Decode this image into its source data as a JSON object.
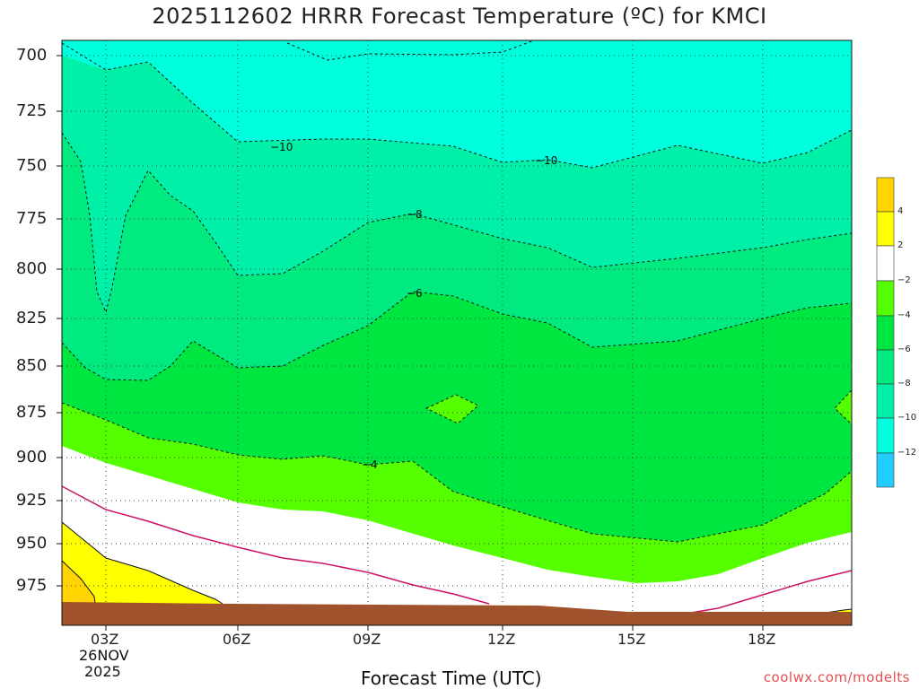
{
  "title": "2025112602 HRRR Forecast Temperature (ºC) for KMCI",
  "watermark": "coolwx.com/modelts",
  "colorbar": {
    "labels": [
      "4",
      "2",
      "−2",
      "−4",
      "−6",
      "−8",
      "−10",
      "−12"
    ],
    "colors": [
      "#ffd400",
      "#ffff00",
      "#ffffff",
      "#55ff00",
      "#00e640",
      "#00ea80",
      "#00f0a8",
      "#00ffdd",
      "#22ccff"
    ]
  },
  "chart_data": {
    "type": "contour",
    "title": "2025112602 HRRR Forecast Temperature (ºC) for KMCI",
    "xlabel": "Forecast Time (UTC)",
    "ylabel": "",
    "x_ticks": [
      "03Z",
      "06Z",
      "09Z",
      "12Z",
      "15Z",
      "18Z"
    ],
    "x_date_label": [
      "26NOV",
      "2025"
    ],
    "y_ticks": [
      "700",
      "725",
      "750",
      "775",
      "800",
      "825",
      "850",
      "875",
      "900",
      "925",
      "950",
      "975"
    ],
    "ylim": [
      990,
      696
    ],
    "contour_labels": [
      "−10",
      "−10",
      "−8",
      "−6",
      "−4"
    ],
    "colorbar_levels": [
      4,
      2,
      -2,
      -4,
      -6,
      -8,
      -10,
      -12
    ],
    "grid": true
  }
}
